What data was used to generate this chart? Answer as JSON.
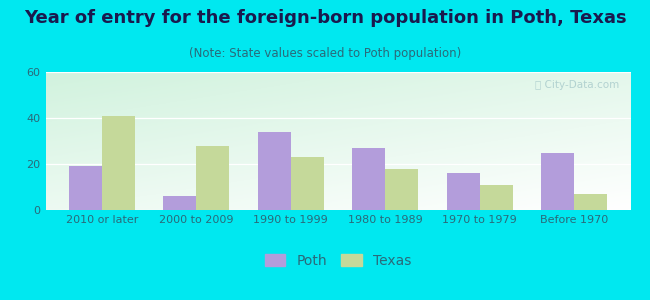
{
  "title": "Year of entry for the foreign-born population in Poth, Texas",
  "subtitle": "(Note: State values scaled to Poth population)",
  "categories": [
    "2010 or later",
    "2000 to 2009",
    "1990 to 1999",
    "1980 to 1989",
    "1970 to 1979",
    "Before 1970"
  ],
  "poth_values": [
    19,
    6,
    34,
    27,
    16,
    25
  ],
  "texas_values": [
    41,
    28,
    23,
    18,
    11,
    7
  ],
  "poth_color": "#b39ddb",
  "texas_color": "#c5d99a",
  "background_outer": "#00e8f0",
  "ylim": [
    0,
    60
  ],
  "yticks": [
    0,
    20,
    40,
    60
  ],
  "bar_width": 0.35,
  "legend_labels": [
    "Poth",
    "Texas"
  ],
  "title_fontsize": 13,
  "subtitle_fontsize": 8.5,
  "tick_fontsize": 8,
  "legend_fontsize": 10,
  "title_color": "#1a1a4e",
  "subtitle_color": "#2a6a7a",
  "tick_color": "#2a6a7a"
}
